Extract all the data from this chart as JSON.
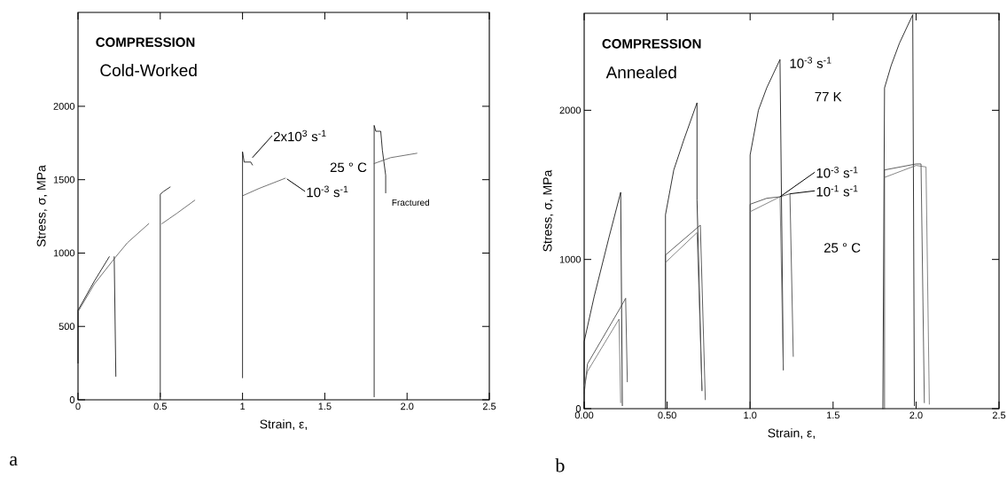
{
  "chart_data": [
    {
      "type": "line",
      "title": "COMPRESSION",
      "subtitle": "Cold-Worked",
      "xlabel": "Strain, ε,",
      "ylabel": "Stress, σ, MPa",
      "xlim": [
        0,
        2.5
      ],
      "ylim": [
        0,
        2640
      ],
      "xticks": [
        0,
        0.5,
        1,
        1.5,
        {
          "value": 2,
          "label": "2.0"
        },
        2.5
      ],
      "yticks": [
        0,
        500,
        1000,
        1500,
        2000
      ],
      "series": [
        {
          "color": "#000000",
          "x": [
            0,
            0,
            0.1,
            0.19,
            null,
            0.22,
            0.23,
            null,
            0.5,
            0.5,
            0.52,
            0.56,
            null,
            1.0,
            1.0,
            1.01,
            1.05,
            1.06,
            null,
            1.8,
            1.8,
            1.81,
            1.84,
            1.85,
            1.87,
            1.87
          ],
          "values": [
            250,
            610,
            810,
            975,
            null,
            975,
            160,
            null,
            20,
            1400,
            1420,
            1450,
            null,
            150,
            1690,
            1620,
            1620,
            1600,
            null,
            20,
            1870,
            1830,
            1830,
            1700,
            1530,
            1410
          ]
        },
        {
          "color": "#505050",
          "x": [
            0,
            0.1,
            0.23,
            0.3,
            0.43,
            null,
            0.51,
            0.6,
            0.71,
            null,
            1.0,
            1.1,
            1.26,
            null,
            1.8,
            1.9,
            2.06
          ],
          "values": [
            600,
            790,
            975,
            1070,
            1200,
            null,
            1200,
            1270,
            1360,
            null,
            1390,
            1440,
            1510,
            null,
            1610,
            1650,
            1680
          ]
        }
      ],
      "annotations": [
        {
          "text": "2x10$^{3}$ s$^{-1}$",
          "x": 1.06,
          "y": 1650
        },
        {
          "text": "10$^{-3}$ s$^{-1}$",
          "x": 1.27,
          "y": 1505
        },
        "25 ° C",
        {
          "text": "Fractured",
          "x": 1.87,
          "y": 1420
        },
        "a"
      ]
    },
    {
      "type": "line",
      "title": "COMPRESSION",
      "subtitle": "Annealed",
      "xlabel": "Strain, ε,",
      "ylabel": "Stress, σ, MPa",
      "xlim": [
        0,
        2.5
      ],
      "ylim": [
        0,
        2650
      ],
      "xticks": [
        {
          "value": 0,
          "label": "0.00"
        },
        {
          "value": 0.5,
          "label": "0.50"
        },
        {
          "value": 1,
          "label": "1.0"
        },
        1.5,
        {
          "value": 2,
          "label": "2.0"
        },
        2.5
      ],
      "yticks": [
        0,
        1000,
        2000
      ],
      "series": [
        {
          "color": "#000000",
          "x": [
            0,
            0,
            0.06,
            0.15,
            0.22,
            0.23,
            null,
            0.49,
            0.49,
            0.54,
            0.6,
            0.68,
            0.68,
            0.71,
            null,
            1.0,
            1.0,
            1.02,
            1.05,
            1.1,
            1.18,
            1.2,
            null,
            1.8,
            1.81,
            1.85,
            1.9,
            1.98,
            1.99
          ],
          "values": [
            0,
            450,
            750,
            1150,
            1450,
            20,
            null,
            0,
            1300,
            1600,
            1800,
            2050,
            1400,
            120,
            null,
            0,
            1700,
            1820,
            2000,
            2150,
            2340,
            260,
            null,
            0,
            2150,
            2300,
            2450,
            2640,
            20
          ]
        },
        {
          "color": "#383838",
          "x": [
            0,
            0.02,
            0.22,
            0.25,
            0.26,
            null,
            0.49,
            0.49,
            0.7,
            0.73,
            null,
            1.0,
            1.0,
            1.1,
            1.18,
            1.24,
            1.26,
            null,
            1.81,
            1.81,
            2.0,
            2.03,
            2.05
          ],
          "values": [
            100,
            300,
            680,
            740,
            180,
            null,
            0,
            1030,
            1230,
            60,
            null,
            0,
            1370,
            1410,
            1420,
            1440,
            350,
            null,
            0,
            1600,
            1640,
            1640,
            40
          ]
        },
        {
          "color": "#686868",
          "x": [
            0,
            0.02,
            0.21,
            0.22,
            null,
            0.49,
            0.68,
            0.71,
            null,
            1.0,
            1.18,
            1.2,
            null,
            1.81,
            2.0,
            2.06,
            2.08
          ],
          "values": [
            150,
            250,
            600,
            40,
            null,
            980,
            1180,
            130,
            null,
            1320,
            1420,
            260,
            null,
            1550,
            1630,
            1620,
            30
          ]
        }
      ],
      "annotations": [
        {
          "text": "10$^{-3}$ s$^{-1}$",
          "x": 1.18,
          "y": 2340
        },
        "77 K",
        {
          "text": "10$^{-3}$ s$^{-1}$",
          "x": 1.18,
          "y": 1420
        },
        {
          "text": "10$^{-1}$ s$^{-1}$",
          "x": 1.24,
          "y": 1440
        },
        "25 ° C",
        "b"
      ]
    }
  ]
}
